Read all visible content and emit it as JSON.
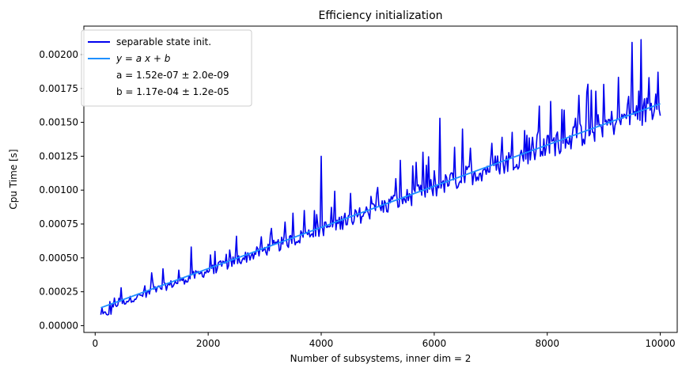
{
  "chart_data": {
    "type": "line",
    "title": "Efficiency initialization",
    "xlabel": "Number of subsystems, inner dim = 2",
    "ylabel": "Cpu Time [s]",
    "xlim": [
      -200,
      10300
    ],
    "ylim": [
      -5e-05,
      0.00221
    ],
    "xticks": [
      0,
      2000,
      4000,
      6000,
      8000,
      10000
    ],
    "xtick_labels": [
      "0",
      "2000",
      "4000",
      "6000",
      "8000",
      "10000"
    ],
    "yticks": [
      0.0,
      0.00025,
      0.0005,
      0.00075,
      0.001,
      0.00125,
      0.0015,
      0.00175,
      0.002
    ],
    "ytick_labels": [
      "0.00000",
      "0.00025",
      "0.00050",
      "0.00075",
      "0.00100",
      "0.00125",
      "0.00150",
      "0.00175",
      "0.00200"
    ],
    "grid": false,
    "legend_position": "top-left",
    "series": [
      {
        "name": "separable state init.",
        "color": "#0000ee",
        "x_start": 100,
        "x_end": 10000,
        "x_step": 20,
        "noise_note": "rendered as noisy trace around the fit line with spikes",
        "spikes": [
          {
            "x": 450,
            "y": 0.00028
          },
          {
            "x": 1000,
            "y": 0.00039
          },
          {
            "x": 1200,
            "y": 0.00042
          },
          {
            "x": 1700,
            "y": 0.00058
          },
          {
            "x": 2500,
            "y": 0.00066
          },
          {
            "x": 3500,
            "y": 0.00083
          },
          {
            "x": 3700,
            "y": 0.00085
          },
          {
            "x": 4000,
            "y": 0.00125
          },
          {
            "x": 5000,
            "y": 0.00102
          },
          {
            "x": 5400,
            "y": 0.00122
          },
          {
            "x": 5800,
            "y": 0.00128
          },
          {
            "x": 6100,
            "y": 0.00153
          },
          {
            "x": 6500,
            "y": 0.00145
          },
          {
            "x": 7200,
            "y": 0.00139
          },
          {
            "x": 7600,
            "y": 0.00144
          },
          {
            "x": 7850,
            "y": 0.00162
          },
          {
            "x": 8300,
            "y": 0.00159
          },
          {
            "x": 8700,
            "y": 0.00172
          },
          {
            "x": 9000,
            "y": 0.00178
          },
          {
            "x": 9500,
            "y": 0.00209
          },
          {
            "x": 9650,
            "y": 0.00211
          },
          {
            "x": 9800,
            "y": 0.00183
          },
          {
            "x": 9950,
            "y": 0.00187
          }
        ]
      },
      {
        "name": "y = a x + b",
        "color": "#1e90ff",
        "slope": 1.52e-07,
        "intercept": 0.000117,
        "x_start": 100,
        "x_end": 10000
      }
    ],
    "legend": {
      "entries": [
        "separable state init.",
        "y = a x + b"
      ],
      "fit_a": "a = 1.52e-07 ± 2.0e-09",
      "fit_b": "b = 1.17e-04 ± 1.2e-05"
    }
  }
}
